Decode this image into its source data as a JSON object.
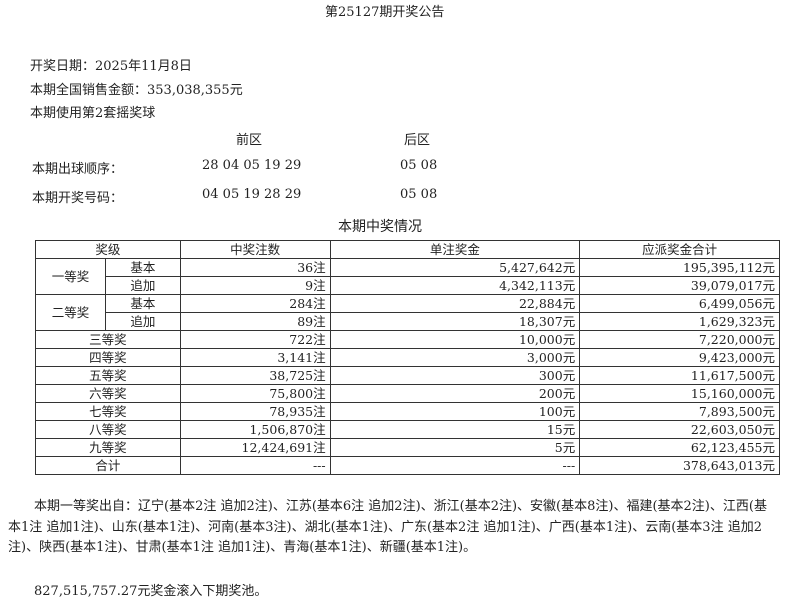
{
  "title": "第25127期开奖公告",
  "date_line": "开奖日期：2025年11月8日",
  "sales_line": "本期全国销售金额：353,038,355元",
  "ball_set_line": "本期使用第2套摇奖球",
  "front_label": "前区",
  "back_label": "后区",
  "draw_order": {
    "label": "本期出球顺序：",
    "front": "28 04 05 19 29",
    "back": "05 08"
  },
  "winning_numbers": {
    "label": "本期开奖号码：",
    "front": "04 05 19 28 29",
    "back": "05 08"
  },
  "table_title": "本期中奖情况",
  "headers": [
    "奖级",
    "中奖注数",
    "单注奖金",
    "应派奖金合计"
  ],
  "rows": [
    {
      "level": "一等奖",
      "sub": "基本",
      "count": "36注",
      "unit": "5,427,642元",
      "total": "195,395,112元"
    },
    {
      "level": "",
      "sub": "追加",
      "count": "9注",
      "unit": "4,342,113元",
      "total": "39,079,017元"
    },
    {
      "level": "二等奖",
      "sub": "基本",
      "count": "284注",
      "unit": "22,884元",
      "total": "6,499,056元"
    },
    {
      "level": "",
      "sub": "追加",
      "count": "89注",
      "unit": "18,307元",
      "total": "1,629,323元"
    },
    {
      "level": "三等奖",
      "count": "722注",
      "unit": "10,000元",
      "total": "7,220,000元"
    },
    {
      "level": "四等奖",
      "count": "3,141注",
      "unit": "3,000元",
      "total": "9,423,000元"
    },
    {
      "level": "五等奖",
      "count": "38,725注",
      "unit": "300元",
      "total": "11,617,500元"
    },
    {
      "level": "六等奖",
      "count": "75,800注",
      "unit": "200元",
      "total": "15,160,000元"
    },
    {
      "level": "七等奖",
      "count": "78,935注",
      "unit": "100元",
      "total": "7,893,500元"
    },
    {
      "level": "八等奖",
      "count": "1,506,870注",
      "unit": "15元",
      "total": "22,603,050元"
    },
    {
      "level": "九等奖",
      "count": "12,424,691注",
      "unit": "5元",
      "total": "62,123,455元"
    },
    {
      "level": "合计",
      "count": "---",
      "unit": "---",
      "total": "378,643,013元"
    }
  ],
  "first_prize_text": "本期一等奖出自：辽宁(基本2注 追加2注)、江苏(基本6注 追加2注)、浙江(基本2注)、安徽(基本8注)、福建(基本2注)、江西(基本1注 追加1注)、山东(基本1注)、河南(基本3注)、湖北(基本1注)、广东(基本2注 追加1注)、广西(基本1注)、云南(基本3注 追加2注)、陕西(基本1注)、甘肃(基本1注 追加1注)、青海(基本1注)、新疆(基本1注)。",
  "rollover_text": "827,515,757.27元奖金滚入下期奖池。"
}
